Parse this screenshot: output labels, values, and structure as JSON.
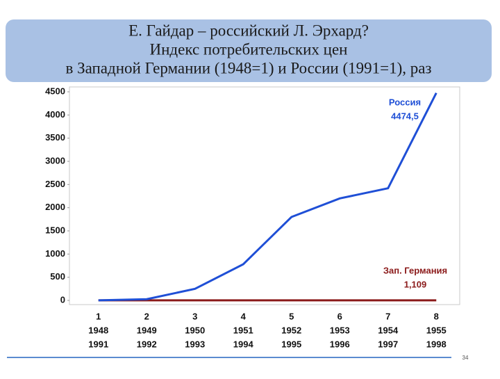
{
  "chart_data": {
    "type": "line",
    "title": [
      "Е. Гайдар – российский Л. Эрхард?",
      "Индекс потребительских цен",
      "в Западной Германии (1948=1) и России (1991=1), раз"
    ],
    "categories": [
      [
        "1",
        "1948",
        "1991"
      ],
      [
        "2",
        "1949",
        "1992"
      ],
      [
        "3",
        "1950",
        "1993"
      ],
      [
        "4",
        "1951",
        "1994"
      ],
      [
        "5",
        "1952",
        "1995"
      ],
      [
        "6",
        "1953",
        "1996"
      ],
      [
        "7",
        "1954",
        "1997"
      ],
      [
        "8",
        "1955",
        "1998"
      ]
    ],
    "series": [
      {
        "name": "Россия",
        "color": "#1f4fd6",
        "values": [
          1,
          26,
          250,
          780,
          1800,
          2200,
          2420,
          4474.5
        ]
      },
      {
        "name": "Зап. Германия",
        "color": "#8b1a1a",
        "values": [
          1,
          1,
          1,
          1,
          1,
          1,
          1,
          1.109
        ]
      }
    ],
    "annotations": [
      {
        "text": "Россия",
        "value_text": "4474,5",
        "series": 0
      },
      {
        "text": "Зап. Германия",
        "value_text": "1,109",
        "series": 1
      }
    ],
    "ylim": [
      0,
      4500
    ],
    "yticks": [
      0,
      500,
      1000,
      1500,
      2000,
      2500,
      3000,
      3500,
      4000,
      4500
    ],
    "grid": false,
    "slide_number": "34"
  }
}
